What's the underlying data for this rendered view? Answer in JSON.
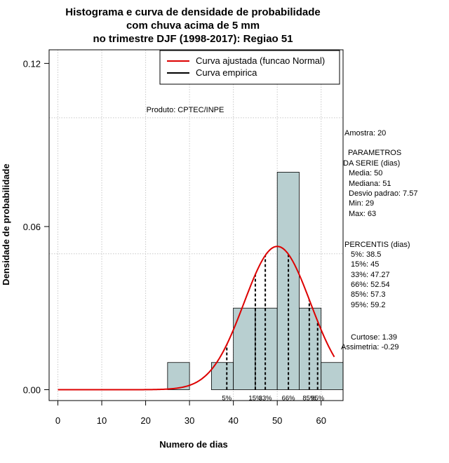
{
  "chart_data": {
    "type": "histogram",
    "title_lines": [
      "Histograma e curva de densidade de probabilidade",
      "com chuva acima de 5 mm",
      "no trimestre DJF (1998-2017): Regiao 51"
    ],
    "xlabel": "Numero de dias",
    "ylabel": "Densidade de probabilidade",
    "xlim": [
      -2,
      65
    ],
    "ylim": [
      -0.004,
      0.125
    ],
    "x_ticks": [
      0,
      10,
      20,
      30,
      40,
      50,
      60
    ],
    "y_ticks": [
      0.0,
      0.06,
      0.12
    ],
    "y_tick_labels": [
      "0.00",
      "0.06",
      "0.12"
    ],
    "grid_x": [
      0,
      10,
      20,
      30,
      40,
      50,
      60
    ],
    "grid_y": [
      0.1,
      0.05
    ],
    "bins": [
      {
        "start": 25,
        "end": 30,
        "density": 0.01
      },
      {
        "start": 30,
        "end": 35,
        "density": 0.0
      },
      {
        "start": 35,
        "end": 40,
        "density": 0.01
      },
      {
        "start": 40,
        "end": 45,
        "density": 0.03
      },
      {
        "start": 45,
        "end": 50,
        "density": 0.03
      },
      {
        "start": 50,
        "end": 55,
        "density": 0.08
      },
      {
        "start": 55,
        "end": 60,
        "density": 0.03
      },
      {
        "start": 60,
        "end": 65,
        "density": 0.01
      }
    ],
    "bar_color": "#b8cfd0",
    "normal_curve": {
      "mean": 50,
      "sd": 7.57,
      "x_from": 0,
      "x_to": 63,
      "color": "#dd0000"
    },
    "percentiles": [
      {
        "label": "5%",
        "x": 38.5
      },
      {
        "label": "15%",
        "x": 45
      },
      {
        "label": "33%",
        "x": 47.27
      },
      {
        "label": "66%",
        "x": 52.54
      },
      {
        "label": "85%",
        "x": 57.3
      },
      {
        "label": "95%",
        "x": 59.2
      }
    ],
    "legend": {
      "position": "top-right",
      "entries": [
        {
          "label": "Curva ajustada (funcao Normal)",
          "color": "#dd0000"
        },
        {
          "label": "Curva empirica",
          "color": "#000000"
        }
      ]
    },
    "annotation": "Produto: CPTEC/INPE",
    "stats_lines": [
      "Amostra: 20",
      "PARAMETROS",
      "DA SERIE (dias)",
      "Media: 50",
      "Mediana: 51",
      "Desvio padrao: 7.57",
      "Min: 29",
      "Max: 63",
      "PERCENTIS (dias)",
      "5%: 38.5",
      "15%: 45",
      "33%: 47.27",
      "66%: 52.54",
      "85%: 57.3",
      "95%: 59.2",
      "Curtose: 1.39",
      "Assimetria: -0.29"
    ]
  }
}
